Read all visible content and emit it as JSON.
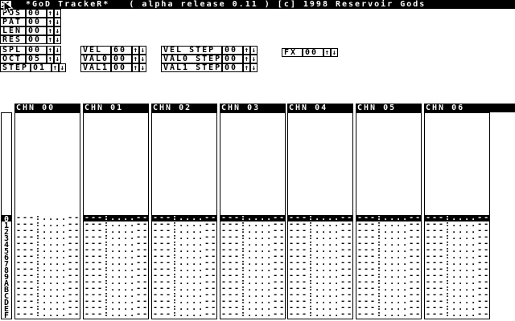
{
  "colors": {
    "foreground": "#000000",
    "background": "#ffffff"
  },
  "title_bar": {
    "title": "*GoD TrackeR*   ( alpha release 0.11 ) [c] 1998 Reservoir Gods"
  },
  "spinner_glyphs": {
    "up": "↑",
    "down": "↓"
  },
  "spinner_groups": {
    "song": [
      {
        "label": "POS",
        "value": "00"
      },
      {
        "label": "PAT",
        "value": "00"
      },
      {
        "label": "LEN",
        "value": "00"
      },
      {
        "label": "RES",
        "value": "00"
      }
    ],
    "edit": [
      {
        "label": "SPL",
        "value": "00"
      },
      {
        "label": "OCT",
        "value": "05"
      },
      {
        "label": "STEP",
        "value": "01"
      }
    ],
    "values": [
      {
        "label": "VEL",
        "value": "60"
      },
      {
        "label": "VAL0",
        "value": "00"
      },
      {
        "label": "VAL1",
        "value": "00"
      }
    ],
    "steps": [
      {
        "label": "VEL STEP",
        "value": "00"
      },
      {
        "label": "VAL0 STEP",
        "value": "00"
      },
      {
        "label": "VAL1 STEP",
        "value": "00"
      }
    ],
    "fx": {
      "label": "FX",
      "value": "00"
    }
  },
  "pattern": {
    "channels": [
      {
        "label": "CHN 00"
      },
      {
        "label": "CHN 01"
      },
      {
        "label": "CHN 02"
      },
      {
        "label": "CHN 03"
      },
      {
        "label": "CHN 04"
      },
      {
        "label": "CHN 05"
      },
      {
        "label": "CHN 06"
      }
    ],
    "row_numbers": [
      "0",
      "1",
      "2",
      "3",
      "4",
      "5",
      "6",
      "7",
      "8",
      "9",
      "A",
      "B",
      "C",
      "D",
      "E",
      "F"
    ],
    "empty_row_text": "---:....--",
    "active_row": 0,
    "active_channel": 0
  }
}
